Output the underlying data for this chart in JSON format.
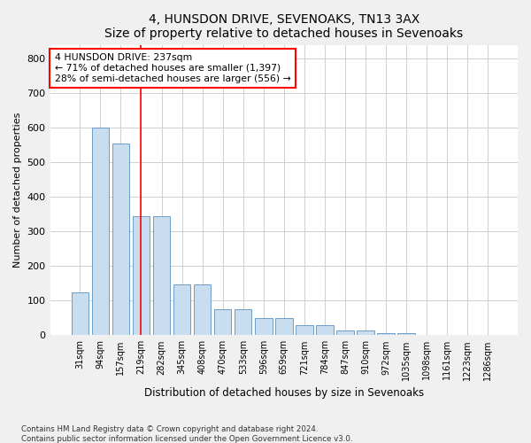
{
  "title": "4, HUNSDON DRIVE, SEVENOAKS, TN13 3AX",
  "subtitle": "Size of property relative to detached houses in Sevenoaks",
  "xlabel": "Distribution of detached houses by size in Sevenoaks",
  "ylabel": "Number of detached properties",
  "bar_labels": [
    "31sqm",
    "94sqm",
    "157sqm",
    "219sqm",
    "282sqm",
    "345sqm",
    "408sqm",
    "470sqm",
    "533sqm",
    "596sqm",
    "659sqm",
    "721sqm",
    "784sqm",
    "847sqm",
    "910sqm",
    "972sqm",
    "1035sqm",
    "1098sqm",
    "1161sqm",
    "1223sqm",
    "1286sqm"
  ],
  "bar_values": [
    125,
    600,
    555,
    345,
    345,
    148,
    148,
    75,
    75,
    50,
    50,
    30,
    30,
    13,
    13,
    5,
    5,
    0,
    0,
    0,
    0
  ],
  "bar_color": "#c9ddf0",
  "bar_edge_color": "#5a90c0",
  "vline_x": 3.0,
  "vline_color": "red",
  "annotation_text": "4 HUNSDON DRIVE: 237sqm\n← 71% of detached houses are smaller (1,397)\n28% of semi-detached houses are larger (556) →",
  "annotation_box_color": "white",
  "annotation_box_edge": "red",
  "ylim": [
    0,
    840
  ],
  "yticks": [
    0,
    100,
    200,
    300,
    400,
    500,
    600,
    700,
    800
  ],
  "footer1": "Contains HM Land Registry data © Crown copyright and database right 2024.",
  "footer2": "Contains public sector information licensed under the Open Government Licence v3.0.",
  "bg_color": "#f0f0f0",
  "plot_bg_color": "#ffffff",
  "grid_color": "#d0d0d0"
}
